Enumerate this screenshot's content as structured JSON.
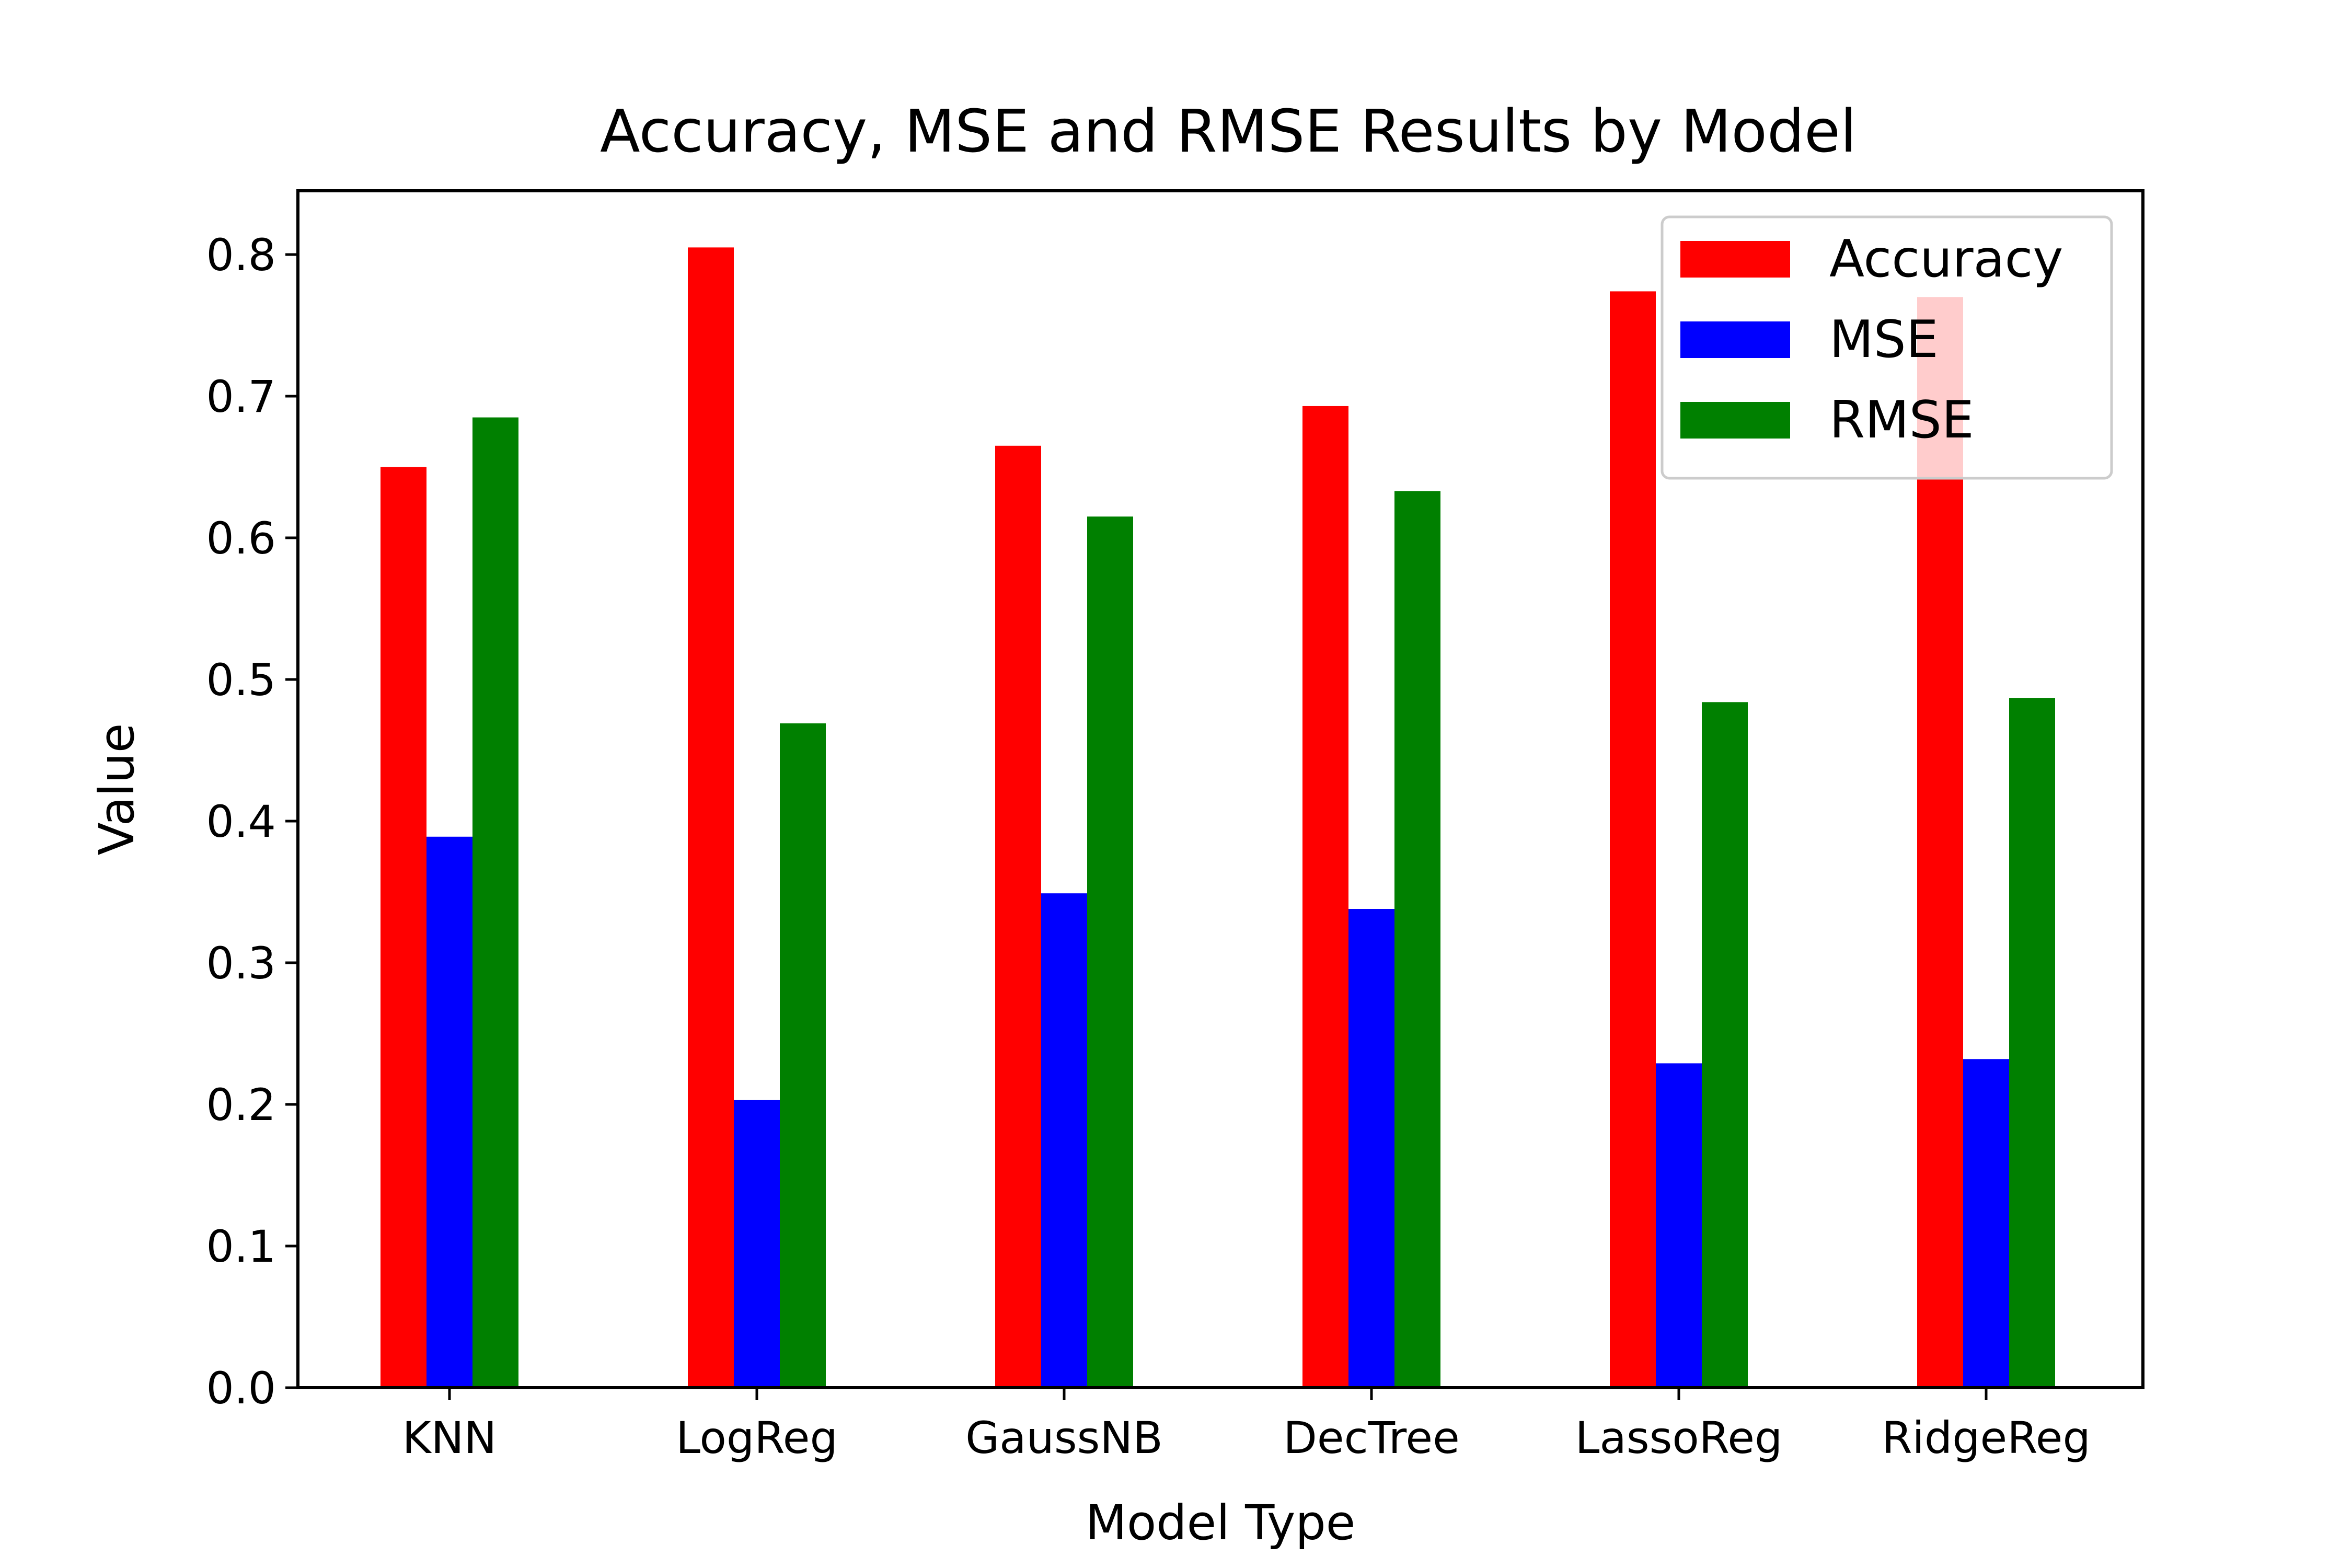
{
  "chart_data": {
    "type": "bar",
    "title": "Accuracy, MSE and RMSE Results by Model",
    "xlabel": "Model Type",
    "ylabel": "Value",
    "categories": [
      "KNN",
      "LogReg",
      "GaussNB",
      "DecTree",
      "LassoReg",
      "RidgeReg"
    ],
    "series": [
      {
        "name": "Accuracy",
        "color": "#ff0000",
        "values": [
          0.65,
          0.805,
          0.665,
          0.693,
          0.774,
          0.77
        ]
      },
      {
        "name": "MSE",
        "color": "#0000ff",
        "values": [
          0.389,
          0.203,
          0.349,
          0.338,
          0.229,
          0.232
        ]
      },
      {
        "name": "RMSE",
        "color": "#008000",
        "values": [
          0.685,
          0.469,
          0.615,
          0.633,
          0.484,
          0.487
        ]
      }
    ],
    "ylim": [
      0,
      0.845
    ],
    "yticks": [
      0.0,
      0.1,
      0.2,
      0.3,
      0.4,
      0.5,
      0.6,
      0.7,
      0.8
    ],
    "ytick_labels": [
      "0.0",
      "0.1",
      "0.2",
      "0.3",
      "0.4",
      "0.5",
      "0.6",
      "0.7",
      "0.8"
    ],
    "grid": false,
    "legend_position": "top-right"
  }
}
